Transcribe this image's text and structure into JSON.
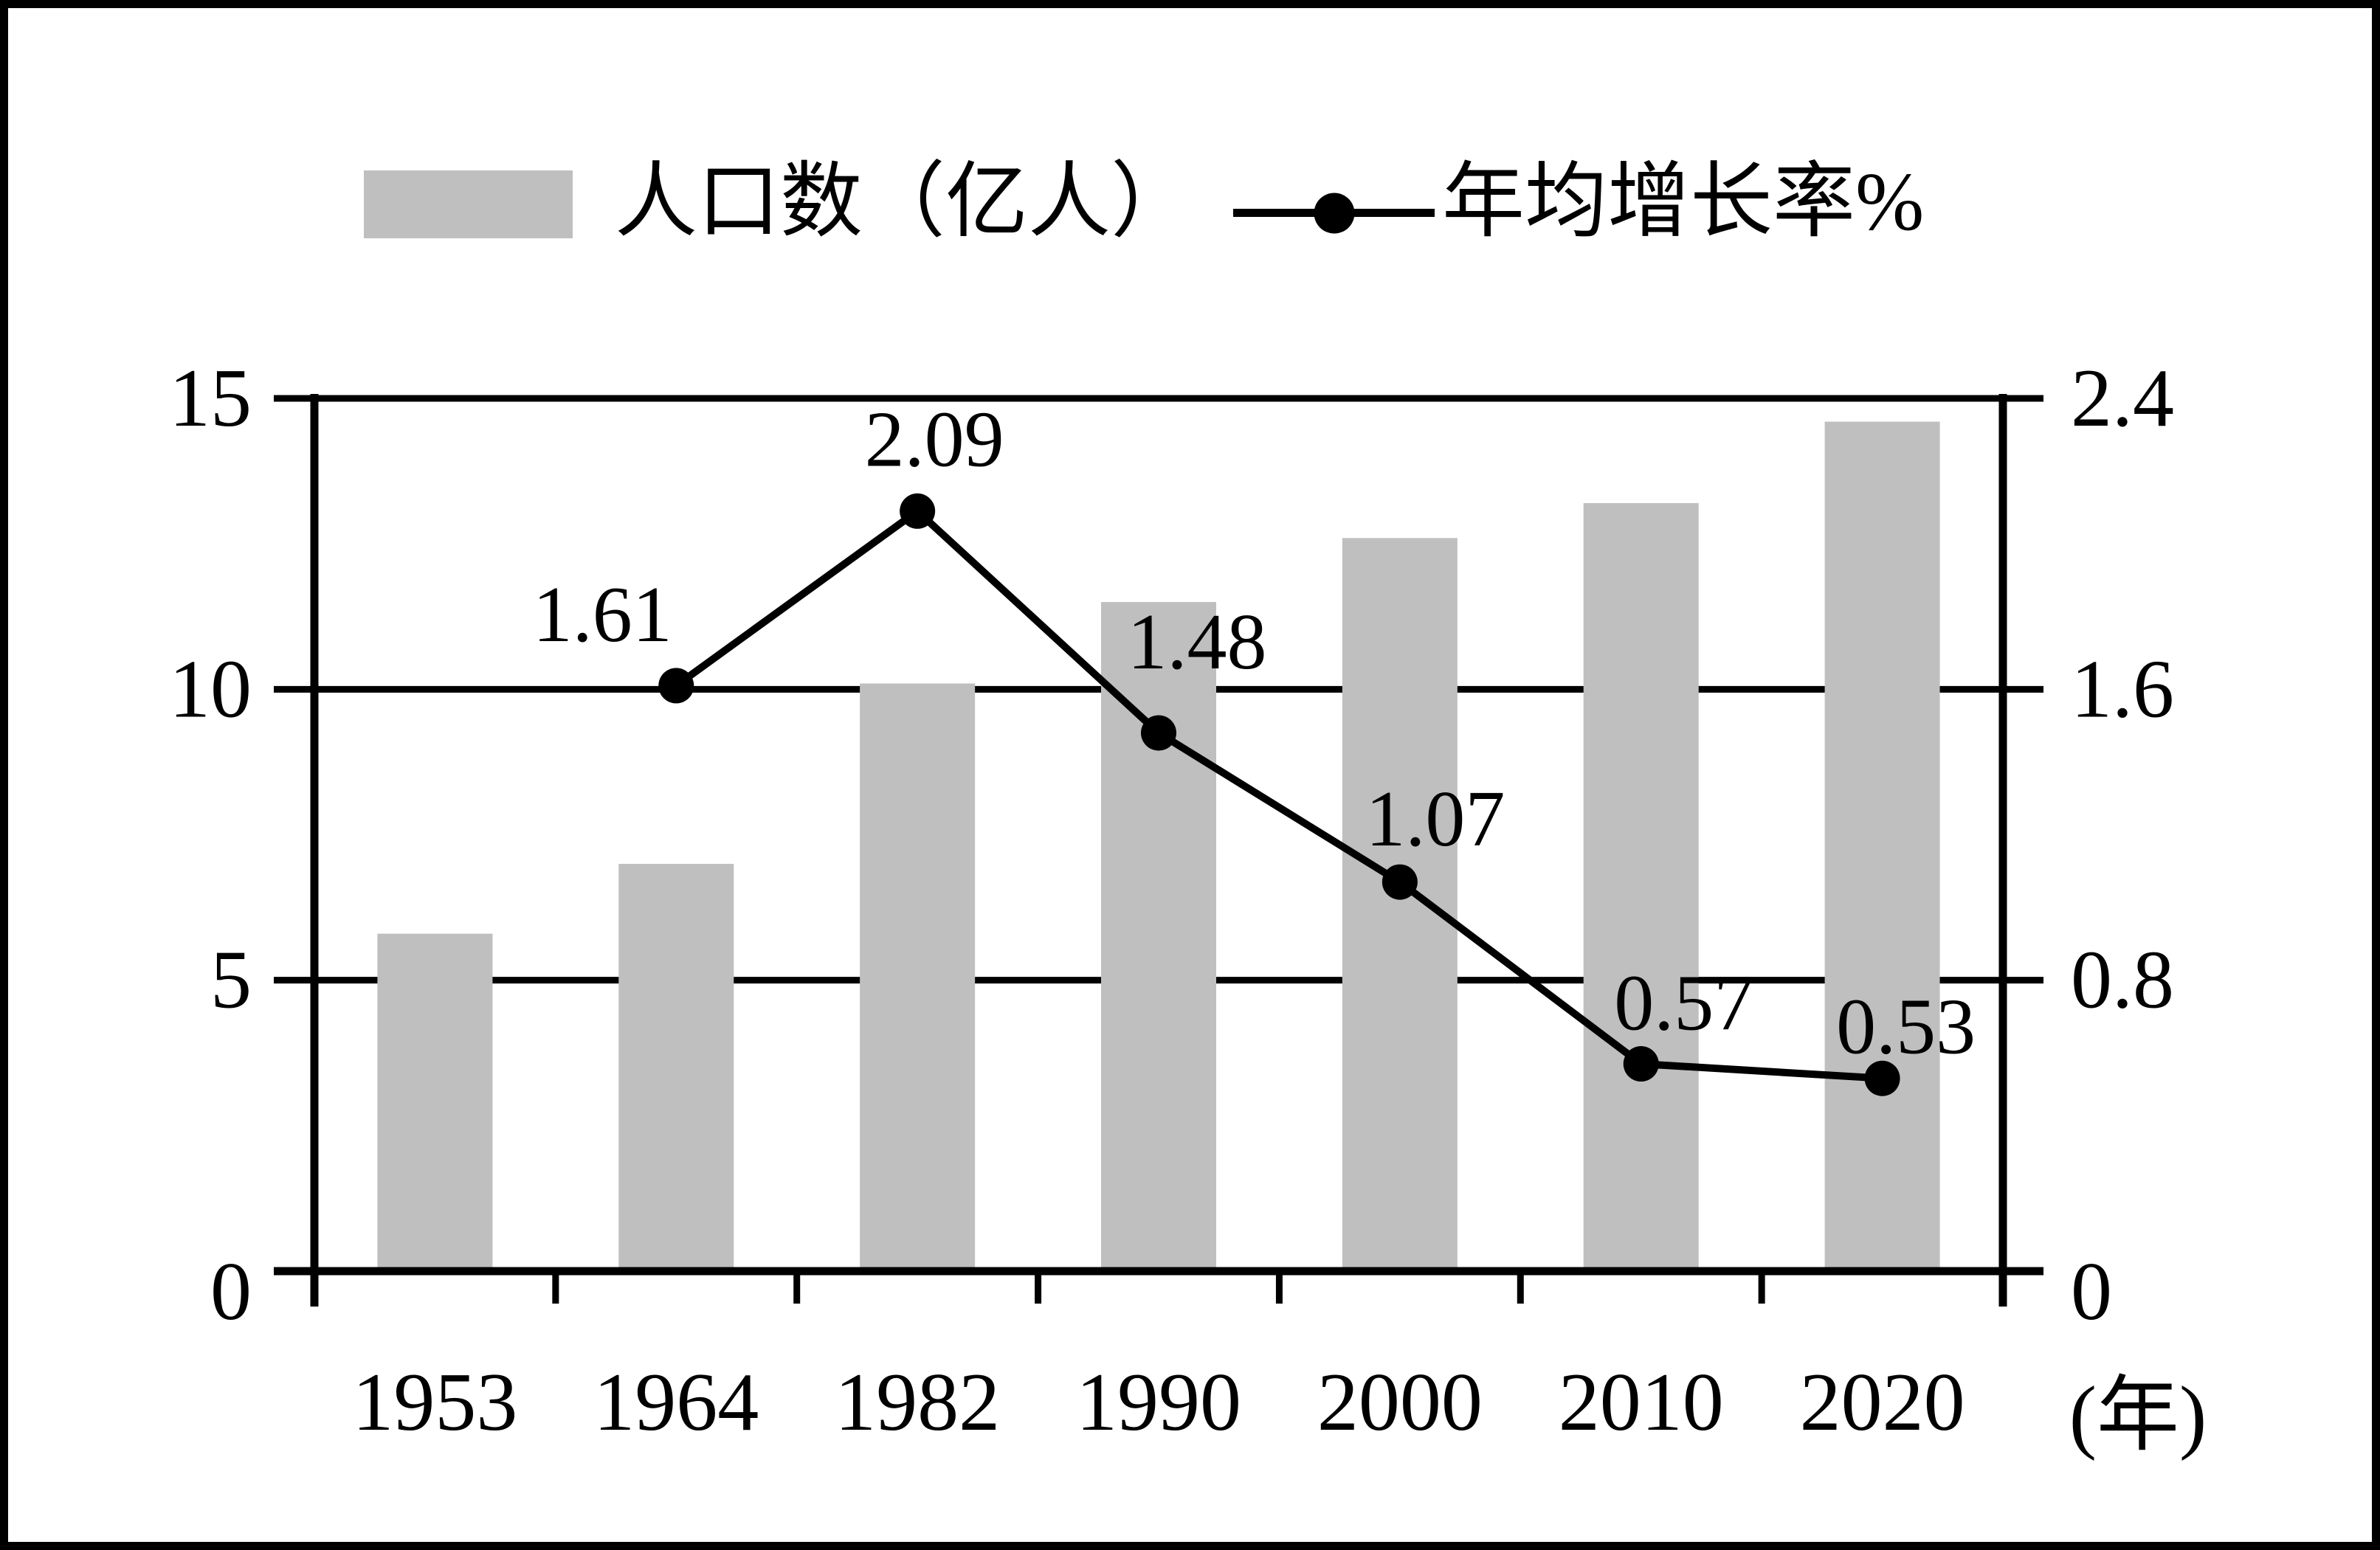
{
  "legend": {
    "bar_label": "人口数（亿人）",
    "line_label": "年均增长率%"
  },
  "chart_data": {
    "type": "bar+line combo",
    "title": "",
    "categories": [
      "1953",
      "1964",
      "1982",
      "1990",
      "2000",
      "2010",
      "2020"
    ],
    "x_axis_unit": "(年)",
    "series": [
      {
        "name": "人口数（亿人）",
        "type": "bar",
        "axis": "left",
        "color": "#bfbfbf",
        "values": [
          5.8,
          7.0,
          10.1,
          11.5,
          12.6,
          13.2,
          14.6
        ]
      },
      {
        "name": "年均增长率%",
        "type": "line",
        "axis": "right",
        "color": "#000000",
        "values": [
          null,
          1.61,
          2.09,
          1.48,
          1.07,
          0.57,
          0.53
        ],
        "point_labels": [
          "",
          "1.61",
          "2.09",
          "1.48",
          "1.07",
          "0.57",
          "0.53"
        ]
      }
    ],
    "left_axis": {
      "ticks": [
        0,
        5,
        10,
        15
      ],
      "range": [
        0,
        15
      ]
    },
    "right_axis": {
      "ticks": [
        0,
        0.8,
        1.6,
        2.4
      ],
      "range": [
        0,
        2.4
      ]
    },
    "grid": true,
    "legend_position": "top"
  }
}
